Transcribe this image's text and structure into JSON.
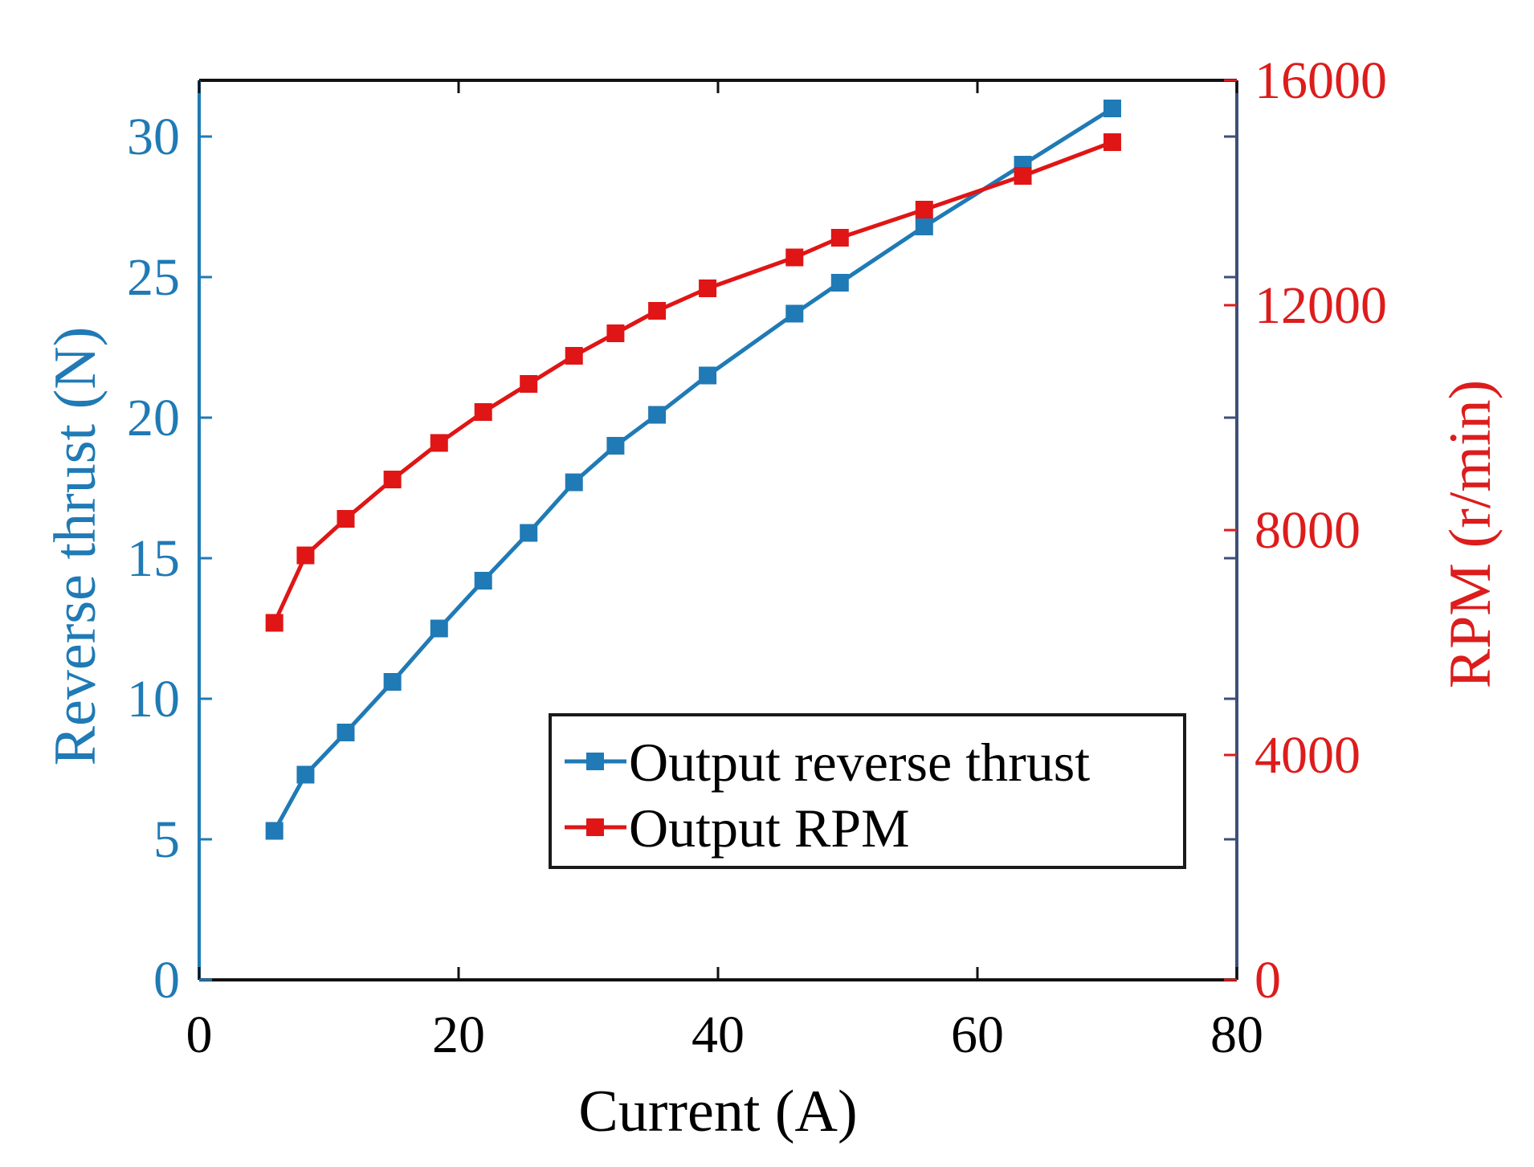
{
  "colors": {
    "left_axis": "#1f7ab5",
    "right_axis": "#dd1c1c",
    "right_spine": "#3d4f7a",
    "series_thrust": "#1f7ab5",
    "series_rpm": "#e01515",
    "text_dark": "#000000"
  },
  "chart_data": {
    "type": "line",
    "title": "",
    "xlabel": "Current (A)",
    "ylabel_left": "Reverse thrust (N)",
    "ylabel_right": "RPM (r/min)",
    "xlim": [
      0,
      80
    ],
    "ylim_left": [
      0,
      32
    ],
    "ylim_right": [
      0,
      16000
    ],
    "x_ticks": [
      0,
      20,
      40,
      60,
      80
    ],
    "y_ticks_left": [
      0,
      5,
      10,
      15,
      20,
      25,
      30
    ],
    "y_ticks_right": [
      0,
      4000,
      8000,
      12000,
      16000
    ],
    "grid": false,
    "legend_position": "bottom-right",
    "series": [
      {
        "name": "Output reverse thrust",
        "axis": "left",
        "marker": "square",
        "x": [
          5.8,
          8.2,
          11.3,
          14.9,
          18.5,
          21.9,
          25.4,
          28.9,
          32.1,
          35.3,
          39.2,
          45.9,
          49.4,
          55.9,
          63.5,
          70.4
        ],
        "y": [
          5.3,
          7.3,
          8.8,
          10.6,
          12.5,
          14.2,
          15.9,
          17.7,
          19.0,
          20.1,
          21.5,
          23.7,
          24.8,
          26.8,
          29.0,
          31.0
        ]
      },
      {
        "name": "Output RPM",
        "axis": "right",
        "marker": "square",
        "x": [
          5.8,
          8.2,
          11.3,
          14.9,
          18.5,
          21.9,
          25.4,
          28.9,
          32.1,
          35.3,
          39.2,
          45.9,
          49.4,
          55.9,
          63.5,
          70.4
        ],
        "y": [
          6350,
          7550,
          8200,
          8900,
          9550,
          10100,
          10600,
          11100,
          11500,
          11900,
          12300,
          12850,
          13200,
          13700,
          14300,
          14900
        ]
      }
    ]
  }
}
